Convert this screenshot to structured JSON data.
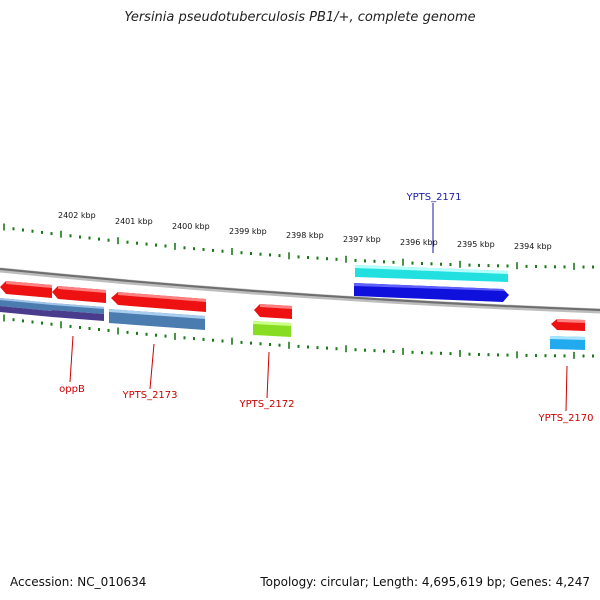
{
  "title": "Yersinia pseudotuberculosis PB1/+, complete genome",
  "footer": {
    "accession": "Accession: NC_010634",
    "topology": "Topology: circular; Length: 4,695,619 bp; Genes: 4,247"
  },
  "kbp_ticks": [
    "2402 kbp",
    "2401 kbp",
    "2400 kbp",
    "2399 kbp",
    "2398 kbp",
    "2397 kbp",
    "2396 kbp",
    "2395 kbp",
    "2394 kbp"
  ],
  "gene_labels": [
    {
      "text": "oppB",
      "color": "#cc0000"
    },
    {
      "text": "YPTS_2173",
      "color": "#cc0000"
    },
    {
      "text": "YPTS_2172",
      "color": "#cc0000"
    },
    {
      "text": "YPTS_2171",
      "color": "#1a1aa8"
    },
    {
      "text": "YPTS_2170",
      "color": "#cc0000"
    }
  ],
  "colors": {
    "backbone": "#808080",
    "tick": "#1a7a1a",
    "red_gene": "#ee1111",
    "blue_gene": "#1010dd",
    "cyan_gene": "#22dddd",
    "steel_feature": "#4a7cb0",
    "purple_feature": "#4a3c8c",
    "green_feature": "#88dd22",
    "sky_feature": "#22aaee"
  }
}
